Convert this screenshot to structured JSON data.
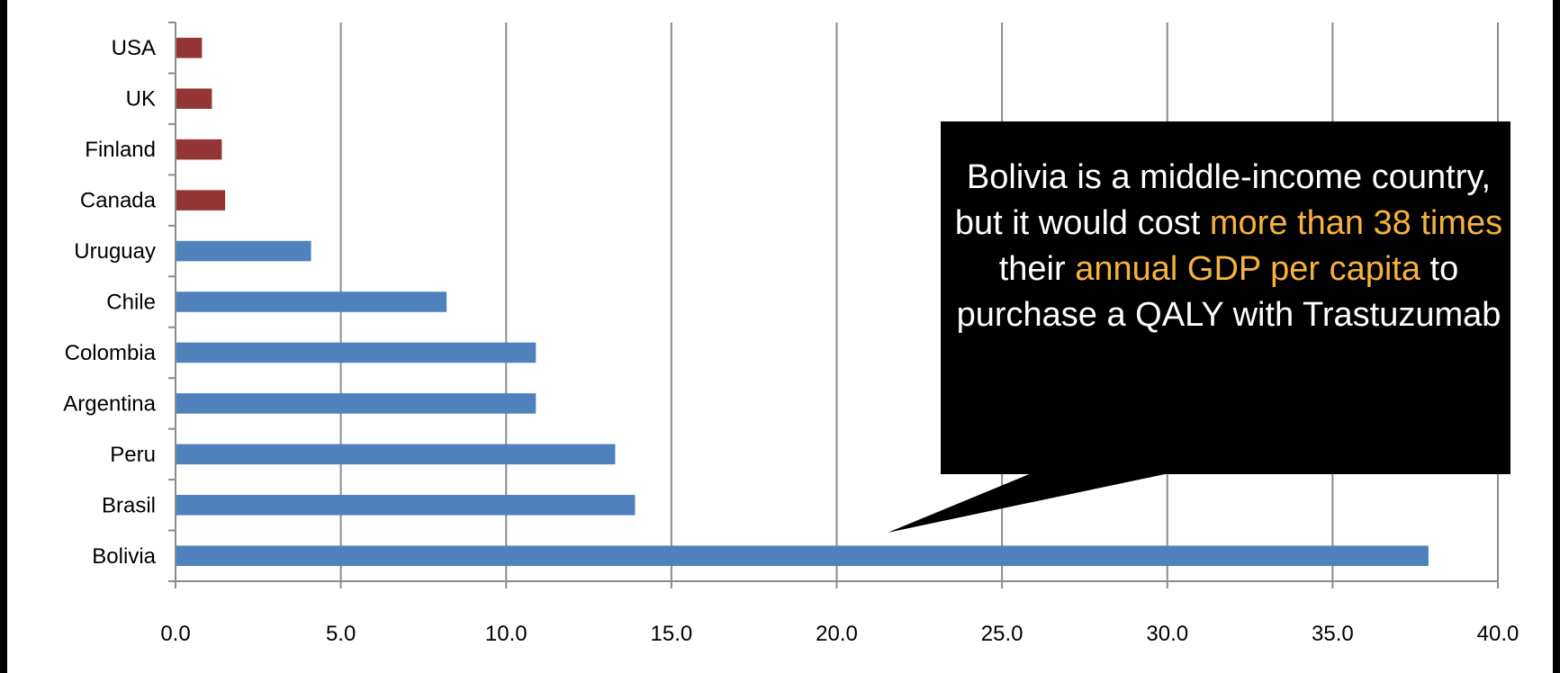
{
  "chart_data": {
    "type": "bar",
    "orientation": "horizontal",
    "categories": [
      "Bolivia",
      "Brasil",
      "Peru",
      "Argentina",
      "Colombia",
      "Chile",
      "Uruguay",
      "Canada",
      "Finland",
      "UK",
      "USA"
    ],
    "values": [
      37.9,
      13.9,
      13.3,
      10.9,
      10.9,
      8.2,
      4.1,
      1.5,
      1.4,
      1.1,
      0.8
    ],
    "bar_colors": [
      "#4f81bd",
      "#4f81bd",
      "#4f81bd",
      "#4f81bd",
      "#4f81bd",
      "#4f81bd",
      "#4f81bd",
      "#943634",
      "#943634",
      "#943634",
      "#943634"
    ],
    "xlim": [
      0,
      40
    ],
    "x_ticks": [
      "0.0",
      "5.0",
      "10.0",
      "15.0",
      "20.0",
      "25.0",
      "30.0",
      "35.0",
      "40.0"
    ],
    "grid": "vertical",
    "title": "",
    "xlabel": "",
    "ylabel": ""
  },
  "callout": {
    "part1": "Bolivia is a middle-income country, but it would cost ",
    "highlight1": "more than 38 times",
    "part2": " their ",
    "highlight2": "annual GDP per capita",
    "part3": " to purchase a QALY with Trastuzumab",
    "background": "#000000",
    "text_color": "#ffffff",
    "highlight_color": "#f7b23b"
  }
}
